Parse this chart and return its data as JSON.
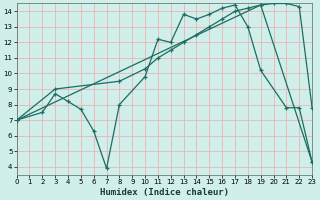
{
  "xlabel": "Humidex (Indice chaleur)",
  "bg_color": "#d0eeea",
  "grid_color": "#e8b4b4",
  "line_color": "#1a6e64",
  "xlim": [
    0,
    23
  ],
  "ylim": [
    3.5,
    14.5
  ],
  "xticks": [
    0,
    1,
    2,
    3,
    4,
    5,
    6,
    7,
    8,
    9,
    10,
    11,
    12,
    13,
    14,
    15,
    16,
    17,
    18,
    19,
    20,
    21,
    22,
    23
  ],
  "yticks": [
    4,
    5,
    6,
    7,
    8,
    9,
    10,
    11,
    12,
    13,
    14
  ],
  "series1_x": [
    0,
    2,
    3,
    4,
    5,
    6,
    7,
    8,
    10,
    11,
    12,
    13,
    14,
    15,
    16,
    17,
    18,
    19,
    21,
    22,
    23
  ],
  "series1_y": [
    7.0,
    7.5,
    8.7,
    8.2,
    7.7,
    6.3,
    3.9,
    8.0,
    9.8,
    12.2,
    12.0,
    13.8,
    13.5,
    13.8,
    14.2,
    14.4,
    13.0,
    10.2,
    7.8,
    7.8,
    4.3
  ],
  "series2_x": [
    0,
    3,
    8,
    10,
    11,
    12,
    13,
    14,
    15,
    16,
    17,
    18,
    19,
    20,
    21,
    22,
    23
  ],
  "series2_y": [
    7.0,
    9.0,
    9.5,
    10.3,
    11.0,
    11.5,
    12.0,
    12.5,
    13.0,
    13.5,
    14.0,
    14.2,
    14.4,
    14.5,
    14.5,
    14.3,
    7.8
  ],
  "series3_x": [
    0,
    19,
    23
  ],
  "series3_y": [
    7.0,
    14.4,
    4.3
  ]
}
